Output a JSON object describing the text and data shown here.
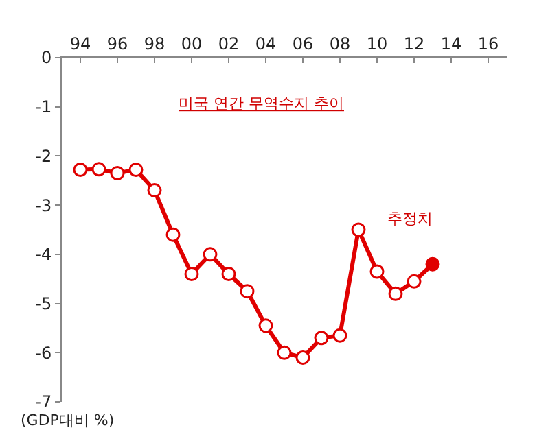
{
  "chart_data": {
    "type": "line",
    "title": "미국 연간 무역수지 추이",
    "ylabel": "(GDP대비 %)",
    "annotations": [
      "추정치"
    ],
    "x": [
      1994,
      1995,
      1996,
      1997,
      1998,
      1999,
      2000,
      2001,
      2002,
      2003,
      2004,
      2005,
      2006,
      2007,
      2008,
      2009,
      2010,
      2011,
      2012,
      2013
    ],
    "series": [
      {
        "color": "#e00000",
        "values": [
          -2.28,
          -2.27,
          -2.35,
          -2.28,
          -2.7,
          -3.6,
          -4.4,
          -4.0,
          -4.4,
          -4.75,
          -5.45,
          -6.0,
          -6.1,
          -5.7,
          -5.65,
          -3.5,
          -4.35,
          -4.8,
          -4.55,
          -4.2
        ]
      },
      {
        "type": "scatter",
        "color": "#e00000",
        "x": [
          2013
        ],
        "values": [
          -4.2
        ]
      }
    ],
    "xlim": [
      1993,
      2017
    ],
    "xticks": [
      {
        "value": 1994,
        "label": "94"
      },
      {
        "value": 1996,
        "label": "96"
      },
      {
        "value": 1998,
        "label": "98"
      },
      {
        "value": 2000,
        "label": "00"
      },
      {
        "value": 2002,
        "label": "02"
      },
      {
        "value": 2004,
        "label": "04"
      },
      {
        "value": 2006,
        "label": "06"
      },
      {
        "value": 2008,
        "label": "08"
      },
      {
        "value": 2010,
        "label": "10"
      },
      {
        "value": 2012,
        "label": "12"
      },
      {
        "value": 2014,
        "label": "14"
      },
      {
        "value": 2016,
        "label": "16"
      }
    ],
    "ylim": [
      -7,
      0
    ],
    "yticks": [
      0,
      -1,
      -2,
      -3,
      -4,
      -5,
      -6,
      -7
    ],
    "grid": false,
    "legend": false,
    "marker": "circle",
    "line_style": "solid"
  }
}
